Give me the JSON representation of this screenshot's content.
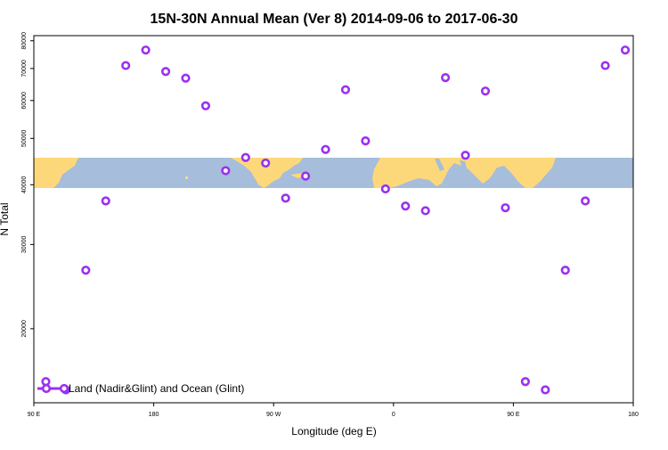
{
  "chart_data": {
    "type": "scatter",
    "title": "15N-30N Annual Mean (Ver 8)   2014-09-06 to 2017-06-30",
    "xlabel": "Longitude (deg E)",
    "ylabel": "N Total",
    "x_ticks": [
      {
        "value": 90,
        "label": "90 E"
      },
      {
        "value": 180,
        "label": "180"
      },
      {
        "value": 270,
        "label": "90 W"
      },
      {
        "value": 360,
        "label": "0"
      },
      {
        "value": 450,
        "label": "90 E"
      },
      {
        "value": 540,
        "label": "180"
      }
    ],
    "y_scale": "log",
    "y_ticks": [
      20000,
      30000,
      40000,
      50000,
      60000,
      70000,
      80000
    ],
    "xlim": [
      90,
      540
    ],
    "ylim": [
      14000,
      82000
    ],
    "map_band": {
      "lat_range": "15N-30N",
      "ocean_color": "#a6bddb",
      "land_color": "#fdd87a"
    },
    "series": [
      {
        "name": "Land (Nadir&Glint) and Ocean (Glint)",
        "color": "#9b30f0",
        "x": [
          99,
          114,
          129,
          144,
          159,
          174,
          189,
          204,
          219,
          234,
          249,
          264,
          279,
          294,
          309,
          324,
          339,
          354,
          369,
          384,
          399,
          414,
          429,
          444,
          459,
          474,
          489,
          504,
          519,
          534
        ],
        "y": [
          15500,
          14900,
          26500,
          37000,
          71000,
          76500,
          69000,
          66800,
          58500,
          42800,
          45600,
          44400,
          37500,
          41700,
          47400,
          63200,
          49400,
          39200,
          36100,
          35300,
          67000,
          46100,
          62800,
          35800,
          15500,
          14900,
          26500,
          37000,
          71000,
          76500
        ]
      }
    ]
  }
}
